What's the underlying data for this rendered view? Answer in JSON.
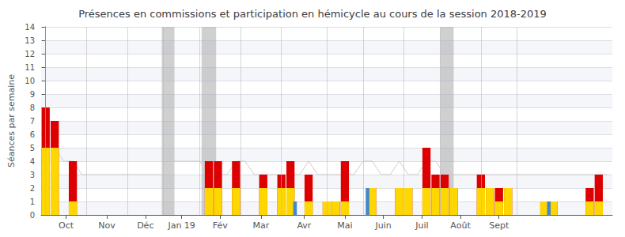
{
  "chart_data": {
    "type": "bar",
    "title": "Présences en commissions et participation en hémicycle au cours de la session 2018-2019",
    "ylabel": "Séances par semaine",
    "x": [
      0,
      1,
      2,
      3,
      4,
      5,
      6,
      7,
      8,
      9,
      10,
      11,
      12,
      13,
      14,
      15,
      16,
      17,
      18,
      19,
      20,
      21,
      22,
      23,
      24,
      25,
      26,
      27,
      28,
      29,
      30,
      31,
      32,
      33,
      34,
      35,
      36,
      37,
      38,
      39,
      40,
      41,
      42,
      43,
      44,
      45,
      46,
      47,
      48,
      49,
      50,
      51,
      52,
      53,
      54,
      55,
      56,
      57,
      58,
      59,
      60,
      61,
      62
    ],
    "xlim": [
      -0.5,
      62.5
    ],
    "xticks": [
      {
        "value": 2.25,
        "label": "Oct"
      },
      {
        "value": 6.75,
        "label": "Nov"
      },
      {
        "value": 11,
        "label": "Déc"
      },
      {
        "value": 15,
        "label": "Jan 19"
      },
      {
        "value": 19.25,
        "label": "Fév"
      },
      {
        "value": 23.75,
        "label": "Mar"
      },
      {
        "value": 28.5,
        "label": "Avr"
      },
      {
        "value": 33,
        "label": "Mai"
      },
      {
        "value": 37.25,
        "label": "Juin"
      },
      {
        "value": 41.5,
        "label": "Juil"
      },
      {
        "value": 45.75,
        "label": "Août"
      },
      {
        "value": 50,
        "label": "Sept"
      }
    ],
    "ylim": [
      0,
      14
    ],
    "yticks": [
      0,
      1,
      2,
      3,
      4,
      5,
      6,
      7,
      8,
      9,
      10,
      11,
      12,
      13,
      14
    ],
    "grid": true,
    "series": [
      {
        "type": "line",
        "color": "#cccccc",
        "values": [
          5,
          5,
          4,
          4,
          3,
          3,
          3,
          3,
          3,
          3,
          3,
          3,
          3,
          3,
          4,
          4,
          4,
          4,
          3,
          3,
          3,
          4,
          4,
          3,
          3,
          3,
          3,
          3,
          3,
          4,
          3,
          3,
          3,
          3,
          3,
          4,
          4,
          3,
          3,
          4,
          3,
          3,
          4,
          4,
          3,
          3,
          3,
          3,
          3,
          3,
          3,
          3,
          3,
          3,
          3,
          3,
          3,
          3,
          3,
          3,
          3,
          3,
          3
        ]
      },
      {
        "type": "bar",
        "color": "#dd0000",
        "values": [
          8,
          7,
          0,
          4,
          0,
          0,
          0,
          0,
          0,
          0,
          0,
          0,
          0,
          0,
          0,
          0,
          0,
          0,
          4,
          4,
          0,
          4,
          0,
          0,
          3,
          0,
          3,
          4,
          0,
          3,
          0,
          1,
          1,
          4,
          0,
          0,
          2,
          0,
          0,
          2,
          2,
          0,
          5,
          3,
          3,
          2,
          0,
          0,
          3,
          2,
          2,
          2,
          0,
          0,
          0,
          1,
          1,
          0,
          0,
          0,
          2,
          3,
          0
        ]
      },
      {
        "type": "bar",
        "color": "#ffd700",
        "values": [
          5,
          5,
          0,
          1,
          0,
          0,
          0,
          0,
          0,
          0,
          0,
          0,
          0,
          0,
          0,
          0,
          0,
          0,
          2,
          2,
          0,
          2,
          0,
          0,
          2,
          0,
          2,
          2,
          0,
          1,
          0,
          1,
          1,
          1,
          0,
          0,
          2,
          0,
          0,
          2,
          2,
          0,
          2,
          2,
          2,
          2,
          0,
          0,
          2,
          2,
          1,
          2,
          0,
          0,
          0,
          1,
          1,
          0,
          0,
          0,
          1,
          1,
          0
        ]
      },
      {
        "type": "bar",
        "color": "#4488cc",
        "x": [
          27.5,
          35.5,
          55.5
        ],
        "values": [
          1.0,
          2.0,
          1.0
        ]
      }
    ],
    "bands": {
      "color": "#aaaaaa",
      "ranges": [
        [
          12.8,
          14.2
        ],
        [
          17.2,
          18.8
        ],
        [
          43.5,
          45.0
        ]
      ]
    },
    "vlines": {
      "color": "#bbbbbb",
      "values": [
        0,
        4.5,
        9,
        13,
        17,
        21.5,
        26,
        31,
        35,
        39.5,
        43.5,
        48,
        52
      ]
    }
  }
}
